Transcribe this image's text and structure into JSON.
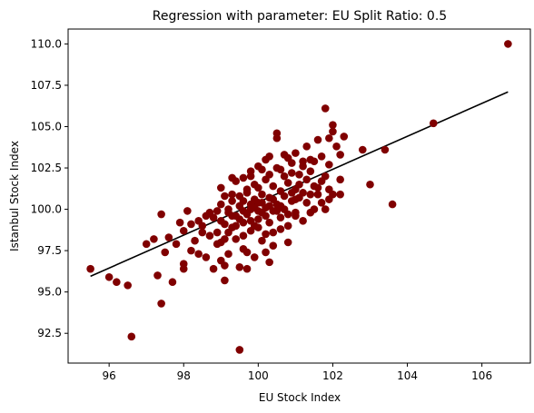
{
  "chart_data": {
    "type": "scatter",
    "title": "Regression with parameter: EU Split Ratio: 0.5",
    "xlabel": "EU Stock Index",
    "ylabel": "Istanbul Stock Index",
    "xlim": [
      94.9,
      107.3
    ],
    "ylim": [
      90.7,
      110.9
    ],
    "xticks": [
      96,
      98,
      100,
      102,
      104,
      106
    ],
    "yticks": [
      92.5,
      95.0,
      97.5,
      100.0,
      102.5,
      105.0,
      107.5,
      110.0
    ],
    "grid": false,
    "legend": "none",
    "point_color": "#800000",
    "line_color": "#000000",
    "regression_line": {
      "x": [
        95.5,
        106.7
      ],
      "y": [
        95.95,
        107.1
      ]
    },
    "points": [
      [
        95.5,
        96.4
      ],
      [
        96.0,
        95.9
      ],
      [
        96.2,
        95.6
      ],
      [
        96.5,
        95.4
      ],
      [
        96.6,
        92.3
      ],
      [
        97.3,
        96.0
      ],
      [
        97.4,
        94.3
      ],
      [
        97.4,
        99.7
      ],
      [
        97.5,
        97.4
      ],
      [
        97.7,
        95.6
      ],
      [
        97.9,
        99.2
      ],
      [
        97.0,
        97.9
      ],
      [
        97.2,
        98.2
      ],
      [
        97.8,
        97.9
      ],
      [
        98.0,
        96.4
      ],
      [
        98.0,
        96.7
      ],
      [
        98.1,
        99.9
      ],
      [
        98.2,
        97.5
      ],
      [
        98.4,
        99.3
      ],
      [
        98.4,
        97.3
      ],
      [
        98.5,
        98.6
      ],
      [
        98.6,
        97.1
      ],
      [
        98.7,
        98.4
      ],
      [
        98.8,
        96.4
      ],
      [
        98.9,
        99.9
      ],
      [
        98.0,
        98.7
      ],
      [
        98.9,
        97.9
      ],
      [
        99.0,
        96.9
      ],
      [
        99.1,
        96.6
      ],
      [
        99.1,
        95.7
      ],
      [
        99.2,
        97.3
      ],
      [
        99.0,
        99.3
      ],
      [
        99.1,
        98.2
      ],
      [
        99.3,
        98.9
      ],
      [
        99.3,
        100.9
      ],
      [
        99.4,
        98.2
      ],
      [
        99.4,
        99.6
      ],
      [
        99.5,
        96.5
      ],
      [
        99.5,
        91.5
      ],
      [
        99.6,
        97.6
      ],
      [
        99.6,
        99.2
      ],
      [
        99.7,
        96.4
      ],
      [
        99.7,
        97.4
      ],
      [
        99.8,
        98.7
      ],
      [
        99.9,
        97.1
      ],
      [
        99.0,
        100.3
      ],
      [
        99.1,
        100.8
      ],
      [
        99.2,
        99.8
      ],
      [
        99.3,
        100.5
      ],
      [
        99.4,
        101.7
      ],
      [
        99.5,
        100.2
      ],
      [
        99.6,
        101.9
      ],
      [
        99.7,
        101.2
      ],
      [
        99.8,
        100.0
      ],
      [
        99.9,
        100.6
      ],
      [
        99.9,
        101.5
      ],
      [
        99.8,
        102.3
      ],
      [
        99.6,
        98.4
      ],
      [
        99.7,
        99.7
      ],
      [
        99.9,
        99.0
      ],
      [
        100.0,
        99.4
      ],
      [
        100.0,
        100.4
      ],
      [
        100.0,
        101.3
      ],
      [
        100.0,
        102.6
      ],
      [
        100.1,
        98.1
      ],
      [
        100.1,
        99.8
      ],
      [
        100.1,
        100.9
      ],
      [
        100.2,
        97.4
      ],
      [
        100.2,
        100.1
      ],
      [
        100.2,
        101.8
      ],
      [
        100.3,
        96.8
      ],
      [
        100.3,
        99.2
      ],
      [
        100.3,
        100.7
      ],
      [
        100.3,
        103.2
      ],
      [
        100.4,
        98.6
      ],
      [
        100.4,
        99.9
      ],
      [
        100.4,
        101.4
      ],
      [
        100.5,
        104.6
      ],
      [
        100.5,
        104.3
      ],
      [
        100.5,
        100.3
      ],
      [
        100.5,
        102.5
      ],
      [
        100.6,
        99.5
      ],
      [
        100.6,
        101.1
      ],
      [
        100.7,
        100.0
      ],
      [
        100.7,
        102.0
      ],
      [
        100.8,
        98.0
      ],
      [
        100.8,
        99.7
      ],
      [
        100.8,
        101.6
      ],
      [
        100.8,
        103.1
      ],
      [
        100.9,
        100.5
      ],
      [
        100.9,
        102.8
      ],
      [
        101.0,
        99.8
      ],
      [
        101.0,
        101.2
      ],
      [
        101.0,
        103.4
      ],
      [
        101.1,
        100.7
      ],
      [
        101.1,
        102.1
      ],
      [
        101.2,
        99.3
      ],
      [
        101.2,
        101.0
      ],
      [
        101.2,
        102.6
      ],
      [
        101.3,
        100.4
      ],
      [
        101.3,
        101.8
      ],
      [
        101.3,
        103.8
      ],
      [
        101.4,
        100.9
      ],
      [
        101.4,
        102.3
      ],
      [
        101.5,
        101.4
      ],
      [
        101.5,
        102.9
      ],
      [
        101.6,
        100.9
      ],
      [
        101.6,
        104.2
      ],
      [
        101.7,
        101.7
      ],
      [
        101.7,
        103.2
      ],
      [
        101.8,
        106.1
      ],
      [
        101.8,
        102.0
      ],
      [
        101.9,
        104.3
      ],
      [
        101.9,
        101.2
      ],
      [
        101.9,
        102.7
      ],
      [
        102.0,
        104.7
      ],
      [
        102.0,
        105.1
      ],
      [
        102.1,
        103.8
      ],
      [
        102.2,
        103.3
      ],
      [
        102.3,
        104.4
      ],
      [
        102.2,
        101.8
      ],
      [
        102.2,
        100.9
      ],
      [
        101.8,
        100.0
      ],
      [
        101.9,
        100.6
      ],
      [
        101.7,
        100.4
      ],
      [
        102.8,
        103.6
      ],
      [
        103.0,
        101.5
      ],
      [
        103.4,
        103.6
      ],
      [
        103.6,
        100.3
      ],
      [
        104.7,
        105.2
      ],
      [
        106.7,
        110.0
      ],
      [
        99.2,
        100.0
      ],
      [
        99.3,
        99.6
      ],
      [
        99.5,
        100.8
      ],
      [
        99.6,
        100.5
      ],
      [
        99.7,
        101.0
      ],
      [
        99.8,
        99.3
      ],
      [
        99.9,
        100.1
      ],
      [
        100.0,
        99.9
      ],
      [
        100.1,
        100.4
      ],
      [
        100.2,
        99.6
      ],
      [
        100.3,
        100.2
      ],
      [
        100.4,
        100.6
      ],
      [
        100.5,
        99.9
      ],
      [
        100.6,
        100.2
      ],
      [
        100.7,
        100.8
      ],
      [
        100.9,
        101.0
      ],
      [
        101.0,
        100.6
      ],
      [
        101.1,
        101.5
      ],
      [
        98.5,
        99.0
      ],
      [
        98.7,
        99.8
      ],
      [
        98.8,
        99.5
      ],
      [
        98.9,
        98.6
      ],
      [
        99.0,
        98.0
      ],
      [
        99.1,
        99.1
      ],
      [
        99.2,
        98.6
      ],
      [
        99.4,
        99.0
      ],
      [
        99.5,
        99.4
      ],
      [
        99.6,
        99.9
      ],
      [
        99.8,
        100.3
      ],
      [
        100.0,
        98.9
      ],
      [
        100.2,
        98.5
      ],
      [
        100.4,
        97.8
      ],
      [
        100.6,
        98.8
      ],
      [
        100.8,
        99.0
      ],
      [
        101.0,
        99.6
      ],
      [
        101.4,
        99.8
      ],
      [
        101.5,
        100.0
      ],
      [
        101.6,
        101.3
      ],
      [
        102.0,
        100.9
      ],
      [
        98.3,
        98.1
      ],
      [
        98.2,
        99.1
      ],
      [
        97.6,
        98.3
      ],
      [
        98.6,
        99.6
      ],
      [
        99.0,
        101.3
      ],
      [
        99.3,
        101.9
      ],
      [
        99.8,
        102.0
      ],
      [
        100.1,
        102.4
      ],
      [
        100.3,
        102.1
      ],
      [
        100.6,
        102.4
      ],
      [
        100.9,
        102.2
      ],
      [
        101.2,
        102.9
      ],
      [
        101.4,
        103.0
      ],
      [
        100.7,
        103.3
      ],
      [
        100.2,
        103.0
      ]
    ]
  }
}
